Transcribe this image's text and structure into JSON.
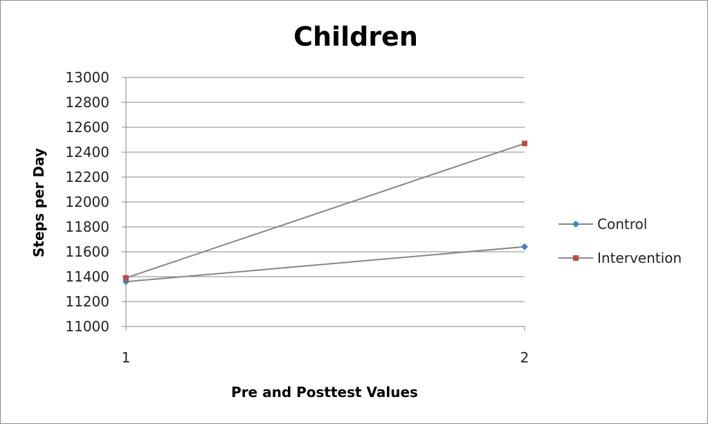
{
  "chart_data": {
    "type": "line",
    "title": "Children",
    "xlabel": "Pre and Posttest Values",
    "ylabel": "Steps per Day",
    "categories": [
      "1",
      "2"
    ],
    "ylim": [
      11000,
      13000
    ],
    "ytick_step": 200,
    "grid": true,
    "legend_position": "right",
    "series": [
      {
        "name": "Control",
        "values": [
          11360,
          11640
        ],
        "color": "#4a7ebb",
        "marker": "diamond",
        "line_color": "#868686"
      },
      {
        "name": "Intervention",
        "values": [
          11390,
          12470
        ],
        "color": "#be4b48",
        "marker": "square",
        "line_color": "#868686"
      }
    ]
  }
}
